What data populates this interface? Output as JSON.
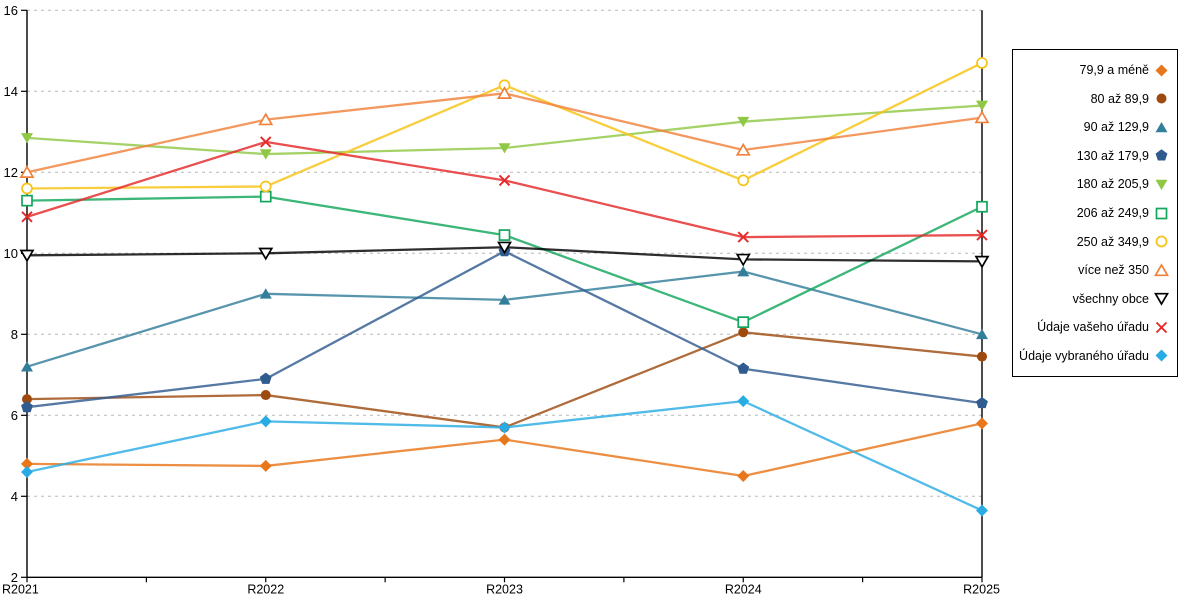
{
  "chart_data": {
    "type": "line",
    "title": "",
    "xlabel": "",
    "ylabel": "",
    "categories": [
      "R2021",
      "R2022",
      "R2023",
      "R2024",
      "R2025"
    ],
    "yaxis": {
      "min": 2,
      "max": 16,
      "step": 2
    },
    "grid": "horizontal-dashed",
    "gridline_color": "#b8b8b8",
    "axis_color": "#000000",
    "legend_position": "right-box",
    "series": [
      {
        "name": "79,9 a méně",
        "color": "#E8761B",
        "marker": "diamond",
        "fill": "solid",
        "values": [
          4.8,
          4.75,
          5.4,
          4.5,
          5.8
        ]
      },
      {
        "name": "80 až 89,9",
        "color": "#9E4A0F",
        "marker": "circle",
        "fill": "solid",
        "values": [
          6.4,
          6.5,
          5.7,
          8.05,
          7.45
        ]
      },
      {
        "name": "90 až 129,9",
        "color": "#337E9B",
        "marker": "triangle-up",
        "fill": "solid",
        "values": [
          7.2,
          9.0,
          8.85,
          9.55,
          8.0
        ]
      },
      {
        "name": "130 až 179,9",
        "color": "#2F5B8F",
        "marker": "pentagon",
        "fill": "solid",
        "values": [
          6.2,
          6.9,
          10.05,
          7.15,
          6.3
        ]
      },
      {
        "name": "180 až 205,9",
        "color": "#90C846",
        "marker": "triangle-down",
        "fill": "solid",
        "values": [
          12.85,
          12.45,
          12.6,
          13.25,
          13.65
        ]
      },
      {
        "name": "206 až 249,9",
        "color": "#12A65C",
        "marker": "square",
        "fill": "open",
        "values": [
          11.3,
          11.4,
          10.45,
          8.3,
          11.15
        ]
      },
      {
        "name": "250 až 349,9",
        "color": "#F6C315",
        "marker": "circle",
        "fill": "open",
        "values": [
          11.6,
          11.65,
          14.15,
          11.8,
          14.7
        ]
      },
      {
        "name": "více než 350",
        "color": "#F0813A",
        "marker": "triangle-up",
        "fill": "open",
        "values": [
          12.0,
          13.3,
          13.95,
          12.55,
          13.35
        ]
      },
      {
        "name": "všechny obce",
        "color": "#000000",
        "marker": "triangle-down",
        "fill": "open",
        "values": [
          9.95,
          10.0,
          10.15,
          9.85,
          9.8
        ]
      },
      {
        "name": "Údaje vašeho úřadu",
        "color": "#E52828",
        "marker": "x",
        "fill": "stroke",
        "values": [
          10.9,
          12.75,
          11.8,
          10.4,
          10.45
        ]
      },
      {
        "name": "Údaje vybraného úřadu",
        "color": "#29ACE3",
        "marker": "diamond",
        "fill": "solid",
        "values": [
          4.6,
          5.85,
          5.7,
          6.35,
          3.65
        ]
      }
    ]
  }
}
